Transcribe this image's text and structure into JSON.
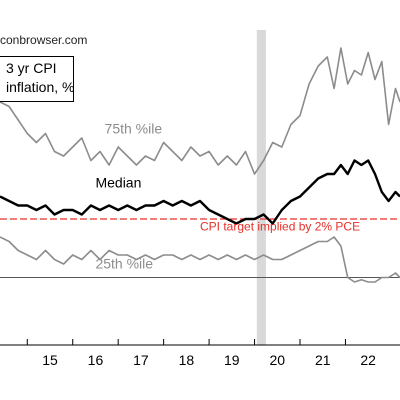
{
  "source_credit": "conbrowser.com",
  "chart_data": {
    "type": "line",
    "title_lines": [
      "3 yr CPI",
      "inflation, %"
    ],
    "xlabel": "",
    "ylabel": "",
    "x_tick_labels": [
      "15",
      "16",
      "17",
      "18",
      "19",
      "20",
      "21",
      "22"
    ],
    "xlim": [
      2014.4,
      2023.2
    ],
    "ylim": [
      -0.5,
      6.5
    ],
    "grid": false,
    "recession_shading": [
      {
        "start": 2020.05,
        "end": 2020.25,
        "color": "#d9d9d9"
      }
    ],
    "reference_lines": [
      {
        "name": "CPI target implied by 2% PCE",
        "value": 2.3,
        "style": "dashed",
        "color": "#e5302a"
      },
      {
        "name": "",
        "value": 1.0,
        "style": "solid",
        "color": "#555555"
      }
    ],
    "series": [
      {
        "name": "75th %ile",
        "color": "#8c8c8c",
        "x": [
          2014.4,
          2014.6,
          2014.8,
          2015.0,
          2015.2,
          2015.4,
          2015.6,
          2015.8,
          2016.0,
          2016.2,
          2016.4,
          2016.6,
          2016.8,
          2017.0,
          2017.2,
          2017.4,
          2017.6,
          2017.8,
          2018.0,
          2018.2,
          2018.4,
          2018.6,
          2018.8,
          2019.0,
          2019.2,
          2019.4,
          2019.6,
          2019.8,
          2020.0,
          2020.2,
          2020.4,
          2020.6,
          2020.8,
          2021.0,
          2021.2,
          2021.4,
          2021.6,
          2021.75,
          2021.9,
          2022.05,
          2022.2,
          2022.35,
          2022.5,
          2022.65,
          2022.8,
          2022.95,
          2023.1,
          2023.2
        ],
        "values": [
          4.9,
          4.8,
          4.5,
          4.2,
          4.0,
          4.2,
          3.8,
          3.7,
          3.9,
          4.1,
          3.6,
          3.8,
          3.5,
          3.9,
          3.7,
          3.5,
          3.7,
          3.6,
          4.0,
          3.8,
          3.6,
          3.9,
          3.7,
          3.8,
          3.5,
          3.7,
          3.5,
          3.8,
          3.3,
          3.6,
          4.0,
          3.9,
          4.4,
          4.6,
          5.3,
          5.7,
          5.9,
          5.2,
          6.1,
          5.3,
          5.6,
          5.5,
          6.0,
          5.4,
          5.8,
          4.4,
          5.2,
          4.9
        ]
      },
      {
        "name": "Median",
        "color": "#000000",
        "x": [
          2014.4,
          2014.6,
          2014.8,
          2015.0,
          2015.2,
          2015.4,
          2015.6,
          2015.8,
          2016.0,
          2016.2,
          2016.4,
          2016.6,
          2016.8,
          2017.0,
          2017.2,
          2017.4,
          2017.6,
          2017.8,
          2018.0,
          2018.2,
          2018.4,
          2018.6,
          2018.8,
          2019.0,
          2019.2,
          2019.4,
          2019.6,
          2019.8,
          2020.0,
          2020.2,
          2020.4,
          2020.6,
          2020.8,
          2021.0,
          2021.2,
          2021.4,
          2021.6,
          2021.75,
          2021.9,
          2022.05,
          2022.2,
          2022.35,
          2022.5,
          2022.65,
          2022.8,
          2022.95,
          2023.1,
          2023.2
        ],
        "values": [
          2.8,
          2.7,
          2.6,
          2.6,
          2.5,
          2.6,
          2.4,
          2.5,
          2.5,
          2.4,
          2.6,
          2.5,
          2.6,
          2.5,
          2.6,
          2.5,
          2.6,
          2.6,
          2.7,
          2.6,
          2.7,
          2.6,
          2.7,
          2.5,
          2.4,
          2.3,
          2.2,
          2.3,
          2.3,
          2.4,
          2.2,
          2.5,
          2.7,
          2.8,
          3.0,
          3.2,
          3.3,
          3.3,
          3.5,
          3.3,
          3.6,
          3.5,
          3.6,
          3.3,
          2.9,
          2.7,
          2.9,
          2.8
        ]
      },
      {
        "name": "25th %ile",
        "color": "#8c8c8c",
        "x": [
          2014.4,
          2014.6,
          2014.8,
          2015.0,
          2015.2,
          2015.4,
          2015.6,
          2015.8,
          2016.0,
          2016.2,
          2016.4,
          2016.6,
          2016.8,
          2017.0,
          2017.2,
          2017.4,
          2017.6,
          2017.8,
          2018.0,
          2018.2,
          2018.4,
          2018.6,
          2018.8,
          2019.0,
          2019.2,
          2019.4,
          2019.6,
          2019.8,
          2020.0,
          2020.2,
          2020.4,
          2020.6,
          2020.8,
          2021.0,
          2021.2,
          2021.4,
          2021.6,
          2021.75,
          2021.9,
          2022.05,
          2022.2,
          2022.35,
          2022.5,
          2022.65,
          2022.8,
          2022.95,
          2023.1,
          2023.2
        ],
        "values": [
          1.9,
          1.8,
          1.6,
          1.5,
          1.4,
          1.6,
          1.4,
          1.3,
          1.5,
          1.4,
          1.6,
          1.4,
          1.6,
          1.5,
          1.5,
          1.4,
          1.5,
          1.4,
          1.5,
          1.5,
          1.4,
          1.5,
          1.4,
          1.5,
          1.4,
          1.5,
          1.4,
          1.5,
          1.4,
          1.5,
          1.4,
          1.4,
          1.5,
          1.6,
          1.7,
          1.8,
          1.8,
          1.9,
          1.7,
          1.0,
          0.9,
          0.95,
          0.9,
          0.9,
          1.0,
          1.0,
          1.1,
          1.0
        ]
      }
    ],
    "annotations": [
      {
        "text": "75th %ile",
        "x": 2016.7,
        "y": 4.2,
        "color": "#8c8c8c"
      },
      {
        "text": "Median",
        "x": 2016.5,
        "y": 3.0,
        "color": "#000000"
      },
      {
        "text": "CPI target implied by 2% PCE",
        "x": 2018.8,
        "y": 2.05,
        "color": "#e5302a"
      },
      {
        "text": "25th %ile",
        "x": 2016.5,
        "y": 1.2,
        "color": "#8c8c8c"
      }
    ]
  }
}
